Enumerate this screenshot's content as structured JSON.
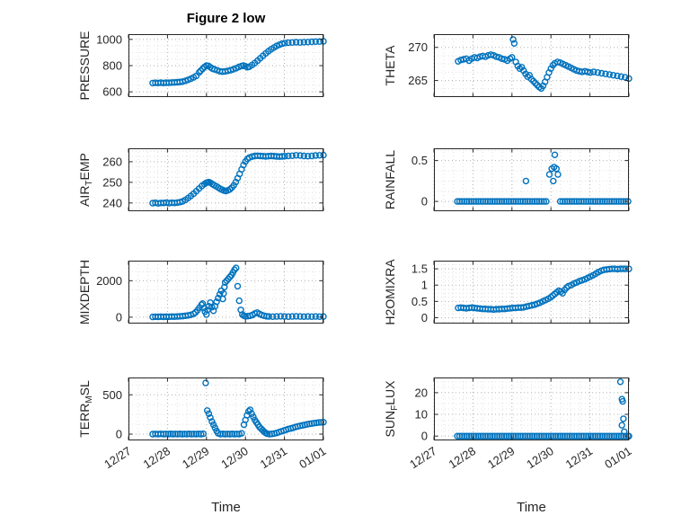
{
  "title": "Figure 2 low",
  "chart_meta": {
    "xlabel": "Time",
    "type": "scatter",
    "marker_style": "open-circle",
    "marker_color": "#0072BD",
    "axis_color": "#262626",
    "grid_major_color": "#b0b0b0",
    "grid_minor_color": "#e0e0e0",
    "grid": "on",
    "xlim": [
      0,
      5
    ],
    "x_minor_step": 0.25,
    "xtick_values": [
      0,
      1,
      2,
      3,
      4,
      5
    ],
    "xtick_labels": [
      "12/27",
      "12/28",
      "12/29",
      "12/30",
      "12/31",
      "01/01"
    ]
  },
  "chart_data": [
    {
      "id": "pressure",
      "ylabel": "PRESSURE",
      "ylabel_parts": [
        {
          "text": "PRESSURE",
          "sub": false
        }
      ],
      "ylim": [
        560,
        1040
      ],
      "ytick_values": [
        600,
        800,
        1000
      ],
      "ytick_labels": [
        "600",
        "800",
        "1000"
      ],
      "x": [
        0.62,
        0.69,
        0.76,
        0.83,
        0.9,
        0.97,
        1.04,
        1.11,
        1.18,
        1.25,
        1.32,
        1.39,
        1.46,
        1.53,
        1.6,
        1.67,
        1.74,
        1.81,
        1.85,
        1.9,
        1.95,
        2.0,
        2.05,
        2.1,
        2.15,
        2.2,
        2.27,
        2.34,
        2.41,
        2.48,
        2.55,
        2.62,
        2.69,
        2.76,
        2.83,
        2.9,
        2.95,
        3.0,
        3.05,
        3.1,
        3.17,
        3.24,
        3.31,
        3.38,
        3.45,
        3.52,
        3.59,
        3.66,
        3.73,
        3.8,
        3.87,
        3.94,
        4.01,
        4.1,
        4.2,
        4.3,
        4.4,
        4.5,
        4.6,
        4.7,
        4.8,
        4.9,
        5.0
      ],
      "y": [
        667,
        669,
        668,
        670,
        668,
        670,
        669,
        671,
        672,
        673,
        675,
        678,
        684,
        692,
        700,
        710,
        722,
        748,
        760,
        775,
        790,
        800,
        798,
        788,
        778,
        772,
        765,
        757,
        754,
        756,
        760,
        765,
        772,
        780,
        790,
        797,
        800,
        795,
        788,
        792,
        805,
        820,
        838,
        856,
        875,
        893,
        910,
        925,
        938,
        950,
        960,
        967,
        972,
        975,
        976,
        978,
        977,
        979,
        980,
        982,
        983,
        984,
        985
      ]
    },
    {
      "id": "theta",
      "ylabel": "THETA",
      "ylabel_parts": [
        {
          "text": "THETA",
          "sub": false
        }
      ],
      "ylim": [
        262.5,
        272
      ],
      "ytick_values": [
        265,
        270
      ],
      "ytick_labels": [
        "265",
        "270"
      ],
      "x": [
        0.62,
        0.69,
        0.76,
        0.83,
        0.9,
        0.97,
        1.04,
        1.11,
        1.18,
        1.25,
        1.32,
        1.39,
        1.46,
        1.53,
        1.6,
        1.67,
        1.74,
        1.81,
        1.88,
        1.95,
        2.0,
        2.03,
        2.06,
        2.1,
        2.15,
        2.2,
        2.25,
        2.3,
        2.35,
        2.4,
        2.45,
        2.5,
        2.55,
        2.6,
        2.65,
        2.7,
        2.75,
        2.8,
        2.85,
        2.9,
        2.95,
        3.0,
        3.05,
        3.1,
        3.17,
        3.24,
        3.31,
        3.38,
        3.45,
        3.52,
        3.59,
        3.66,
        3.73,
        3.8,
        3.87,
        3.94,
        4.01,
        4.1,
        4.2,
        4.3,
        4.4,
        4.5,
        4.6,
        4.7,
        4.8,
        4.9,
        5.0
      ],
      "y": [
        267.9,
        268.1,
        268.2,
        268.3,
        268.0,
        268.3,
        268.5,
        268.4,
        268.6,
        268.7,
        268.6,
        268.8,
        268.9,
        268.8,
        268.6,
        268.5,
        268.3,
        268.2,
        268.0,
        268.3,
        268.5,
        271.2,
        270.6,
        267.8,
        267.2,
        266.8,
        267.0,
        266.5,
        266.0,
        265.6,
        265.8,
        265.2,
        264.9,
        264.6,
        264.3,
        264.0,
        263.8,
        264.2,
        264.8,
        265.5,
        266.2,
        266.8,
        267.3,
        267.6,
        267.8,
        267.7,
        267.5,
        267.3,
        267.1,
        266.9,
        266.7,
        266.5,
        266.4,
        266.3,
        266.4,
        266.3,
        266.2,
        266.3,
        266.2,
        266.1,
        266.0,
        265.9,
        265.8,
        265.7,
        265.6,
        265.5,
        265.3
      ]
    },
    {
      "id": "air_temp",
      "ylabel": "AIR_TEMP",
      "ylabel_parts": [
        {
          "text": "AIR",
          "sub": false
        },
        {
          "text": "T",
          "sub": true
        },
        {
          "text": "EMP",
          "sub": false
        }
      ],
      "ylim": [
        236,
        266.5
      ],
      "ytick_values": [
        240,
        250,
        260
      ],
      "ytick_labels": [
        "240",
        "250",
        "260"
      ],
      "x": [
        0.62,
        0.69,
        0.76,
        0.83,
        0.9,
        0.97,
        1.04,
        1.11,
        1.18,
        1.25,
        1.32,
        1.39,
        1.46,
        1.53,
        1.6,
        1.67,
        1.74,
        1.81,
        1.88,
        1.95,
        2.0,
        2.03,
        2.06,
        2.1,
        2.15,
        2.2,
        2.25,
        2.3,
        2.35,
        2.4,
        2.45,
        2.5,
        2.55,
        2.6,
        2.65,
        2.7,
        2.75,
        2.8,
        2.85,
        2.9,
        2.95,
        3.0,
        3.05,
        3.1,
        3.17,
        3.24,
        3.31,
        3.38,
        3.45,
        3.52,
        3.59,
        3.66,
        3.73,
        3.8,
        3.87,
        3.94,
        4.01,
        4.1,
        4.2,
        4.3,
        4.4,
        4.5,
        4.6,
        4.7,
        4.8,
        4.9,
        5.0
      ],
      "y": [
        239.9,
        240.1,
        239.8,
        240.0,
        240.0,
        240.2,
        239.9,
        240.1,
        240.0,
        240.2,
        240.4,
        240.8,
        241.5,
        242.4,
        243.4,
        244.5,
        245.7,
        247.0,
        248.2,
        249.2,
        249.8,
        250.0,
        250.1,
        249.8,
        249.2,
        248.6,
        248.1,
        247.5,
        246.9,
        246.4,
        246.0,
        245.8,
        246.1,
        246.6,
        247.4,
        248.6,
        250.1,
        252.0,
        254.1,
        256.3,
        258.4,
        260.1,
        261.3,
        262.0,
        262.5,
        262.8,
        262.9,
        262.8,
        262.7,
        262.6,
        262.7,
        262.8,
        262.7,
        262.6,
        262.5,
        262.6,
        262.7,
        262.8,
        262.9,
        263.1,
        263.0,
        262.8,
        262.7,
        262.8,
        263.0,
        263.1,
        263.2
      ]
    },
    {
      "id": "rainfall",
      "ylabel": "RAINFALL",
      "ylabel_parts": [
        {
          "text": "RAINFALL",
          "sub": false
        }
      ],
      "ylim": [
        -0.12,
        0.65
      ],
      "ytick_values": [
        0,
        0.5
      ],
      "ytick_labels": [
        "0",
        "0.5"
      ],
      "x": [
        0.6,
        0.66,
        0.72,
        0.78,
        0.84,
        0.9,
        0.96,
        1.02,
        1.08,
        1.14,
        1.2,
        1.26,
        1.32,
        1.38,
        1.44,
        1.5,
        1.56,
        1.62,
        1.68,
        1.74,
        1.8,
        1.86,
        1.92,
        1.98,
        2.04,
        2.1,
        2.16,
        2.22,
        2.28,
        2.34,
        2.4,
        2.46,
        2.52,
        2.58,
        2.64,
        2.7,
        2.76,
        2.82,
        2.88,
        3.24,
        3.3,
        3.36,
        3.42,
        3.48,
        3.54,
        3.6,
        3.66,
        3.72,
        3.78,
        3.84,
        3.9,
        3.96,
        4.02,
        4.08,
        4.14,
        4.2,
        4.26,
        4.32,
        4.38,
        4.44,
        4.5,
        4.56,
        4.62,
        4.68,
        4.74,
        4.8,
        4.86,
        4.92,
        4.98,
        2.36,
        2.96,
        3.02,
        3.06,
        3.08,
        3.1,
        3.14,
        3.18
      ],
      "y": [
        0,
        0,
        0,
        0,
        0,
        0,
        0,
        0,
        0,
        0,
        0,
        0,
        0,
        0,
        0,
        0,
        0,
        0,
        0,
        0,
        0,
        0,
        0,
        0,
        0,
        0,
        0,
        0,
        0,
        0,
        0,
        0,
        0,
        0,
        0,
        0,
        0,
        0,
        0,
        0,
        0,
        0,
        0,
        0,
        0,
        0,
        0,
        0,
        0,
        0,
        0,
        0,
        0,
        0,
        0,
        0,
        0,
        0,
        0,
        0,
        0,
        0,
        0,
        0,
        0,
        0,
        0,
        0,
        0,
        0.25,
        0.33,
        0.4,
        0.25,
        0.42,
        0.57,
        0.4,
        0.33
      ]
    },
    {
      "id": "mixdepth",
      "ylabel": "MIXDEPTH",
      "ylabel_parts": [
        {
          "text": "MIXDEPTH",
          "sub": false
        }
      ],
      "ylim": [
        -350,
        3100
      ],
      "ytick_values": [
        0,
        2000
      ],
      "ytick_labels": [
        "0",
        "2000"
      ],
      "x": [
        0.62,
        0.69,
        0.76,
        0.83,
        0.9,
        0.97,
        1.04,
        1.11,
        1.18,
        1.25,
        1.32,
        1.39,
        1.46,
        1.53,
        1.6,
        1.67,
        1.72,
        1.77,
        1.82,
        1.87,
        1.9,
        1.93,
        1.96,
        2.0,
        2.03,
        2.06,
        2.1,
        2.14,
        2.18,
        2.22,
        2.26,
        2.3,
        2.34,
        2.38,
        2.42,
        2.44,
        2.46,
        2.48,
        2.52,
        2.56,
        2.6,
        2.64,
        2.68,
        2.72,
        2.76,
        2.8,
        2.84,
        2.88,
        2.92,
        2.96,
        3.0,
        3.06,
        3.12,
        3.18,
        3.24,
        3.3,
        3.36,
        3.42,
        3.48,
        3.54,
        3.6,
        3.7,
        3.8,
        3.9,
        4.0,
        4.1,
        4.2,
        4.3,
        4.4,
        4.5,
        4.6,
        4.7,
        4.8,
        4.9,
        5.0
      ],
      "y": [
        15,
        25,
        20,
        30,
        20,
        30,
        25,
        35,
        30,
        40,
        50,
        60,
        80,
        100,
        130,
        180,
        260,
        380,
        520,
        680,
        750,
        500,
        300,
        150,
        400,
        600,
        800,
        550,
        350,
        600,
        850,
        1050,
        1250,
        1450,
        1000,
        1300,
        1650,
        1900,
        2000,
        2100,
        2200,
        2300,
        2450,
        2600,
        2700,
        1700,
        900,
        400,
        150,
        80,
        50,
        60,
        80,
        120,
        200,
        250,
        180,
        120,
        80,
        50,
        40,
        30,
        40,
        50,
        40,
        30,
        40,
        50,
        40,
        30,
        40,
        30,
        40,
        30,
        40
      ]
    },
    {
      "id": "h2omixra",
      "ylabel": "H2OMIXRA",
      "ylabel_parts": [
        {
          "text": "H2OMIXRA",
          "sub": false
        }
      ],
      "ylim": [
        -0.18,
        1.75
      ],
      "ytick_values": [
        0,
        0.5,
        1,
        1.5
      ],
      "ytick_labels": [
        "0",
        "0.5",
        "1",
        "1.5"
      ],
      "x": [
        0.62,
        0.69,
        0.76,
        0.83,
        0.9,
        0.97,
        1.04,
        1.11,
        1.18,
        1.25,
        1.32,
        1.39,
        1.46,
        1.53,
        1.6,
        1.67,
        1.74,
        1.81,
        1.88,
        1.95,
        2.02,
        2.09,
        2.16,
        2.23,
        2.3,
        2.37,
        2.44,
        2.51,
        2.58,
        2.65,
        2.72,
        2.79,
        2.86,
        2.93,
        3.0,
        3.05,
        3.1,
        3.15,
        3.2,
        3.25,
        3.3,
        3.35,
        3.4,
        3.45,
        3.52,
        3.59,
        3.66,
        3.73,
        3.8,
        3.87,
        3.94,
        4.01,
        4.08,
        4.15,
        4.22,
        4.29,
        4.36,
        4.43,
        4.5,
        4.57,
        4.64,
        4.71,
        4.78,
        4.85,
        4.92,
        5.0
      ],
      "y": [
        0.3,
        0.31,
        0.3,
        0.29,
        0.3,
        0.31,
        0.3,
        0.29,
        0.28,
        0.27,
        0.27,
        0.26,
        0.26,
        0.25,
        0.26,
        0.26,
        0.27,
        0.27,
        0.28,
        0.29,
        0.3,
        0.3,
        0.31,
        0.31,
        0.32,
        0.34,
        0.36,
        0.38,
        0.4,
        0.43,
        0.46,
        0.5,
        0.54,
        0.58,
        0.63,
        0.68,
        0.73,
        0.78,
        0.83,
        0.8,
        0.75,
        0.85,
        0.92,
        0.97,
        1.0,
        1.05,
        1.08,
        1.12,
        1.15,
        1.18,
        1.22,
        1.26,
        1.3,
        1.35,
        1.4,
        1.44,
        1.47,
        1.48,
        1.49,
        1.5,
        1.5,
        1.49,
        1.5,
        1.5,
        1.5,
        1.5
      ]
    },
    {
      "id": "terr_msl",
      "ylabel": "TERR_MSL",
      "ylabel_parts": [
        {
          "text": "TERR",
          "sub": false
        },
        {
          "text": "M",
          "sub": true
        },
        {
          "text": "SL",
          "sub": false
        }
      ],
      "ylim": [
        -80,
        720
      ],
      "ytick_values": [
        0,
        500
      ],
      "ytick_labels": [
        "0",
        "500"
      ],
      "x": [
        0.62,
        0.69,
        0.76,
        0.83,
        0.9,
        0.96,
        1.02,
        1.08,
        1.14,
        1.2,
        1.26,
        1.32,
        1.38,
        1.44,
        1.5,
        1.56,
        1.62,
        1.68,
        1.74,
        1.8,
        1.86,
        1.92,
        1.98,
        2.02,
        2.06,
        2.1,
        2.14,
        2.18,
        2.22,
        2.26,
        2.3,
        2.36,
        2.42,
        2.48,
        2.54,
        2.6,
        2.66,
        2.72,
        2.78,
        2.84,
        2.9,
        2.96,
        3.0,
        3.04,
        3.08,
        3.12,
        3.16,
        3.2,
        3.24,
        3.28,
        3.32,
        3.36,
        3.4,
        3.44,
        3.48,
        3.52,
        3.56,
        3.62,
        3.68,
        3.74,
        3.8,
        3.86,
        3.92,
        3.98,
        4.04,
        4.1,
        4.16,
        4.22,
        4.28,
        4.34,
        4.4,
        4.46,
        4.52,
        4.58,
        4.64,
        4.7,
        4.76,
        4.82,
        4.88,
        4.94,
        5.0
      ],
      "y": [
        0,
        2,
        0,
        3,
        0,
        2,
        0,
        3,
        0,
        2,
        0,
        3,
        0,
        2,
        0,
        3,
        0,
        2,
        0,
        3,
        0,
        5,
        650,
        300,
        260,
        210,
        160,
        120,
        80,
        40,
        10,
        0,
        3,
        0,
        2,
        0,
        3,
        0,
        2,
        0,
        10,
        120,
        180,
        240,
        290,
        310,
        260,
        220,
        180,
        150,
        120,
        90,
        70,
        50,
        30,
        15,
        5,
        0,
        3,
        8,
        15,
        25,
        35,
        45,
        55,
        65,
        72,
        80,
        90,
        98,
        105,
        112,
        118,
        124,
        130,
        135,
        140,
        144,
        147,
        150,
        152
      ]
    },
    {
      "id": "sun_flux",
      "ylabel": "SUN_FLUX",
      "ylabel_parts": [
        {
          "text": "SUN",
          "sub": false
        },
        {
          "text": "F",
          "sub": true
        },
        {
          "text": "LUX",
          "sub": false
        }
      ],
      "ylim": [
        -2,
        27
      ],
      "ytick_values": [
        0,
        10,
        20
      ],
      "ytick_labels": [
        "0",
        "10",
        "20"
      ],
      "x": [
        0.6,
        0.66,
        0.72,
        0.78,
        0.84,
        0.9,
        0.96,
        1.02,
        1.08,
        1.14,
        1.2,
        1.26,
        1.32,
        1.38,
        1.44,
        1.5,
        1.56,
        1.62,
        1.68,
        1.74,
        1.8,
        1.86,
        1.92,
        1.98,
        2.04,
        2.1,
        2.16,
        2.22,
        2.28,
        2.34,
        2.4,
        2.46,
        2.52,
        2.58,
        2.64,
        2.7,
        2.76,
        2.82,
        2.88,
        2.94,
        3.0,
        3.06,
        3.12,
        3.18,
        3.24,
        3.3,
        3.36,
        3.42,
        3.48,
        3.54,
        3.6,
        3.66,
        3.72,
        3.78,
        3.84,
        3.9,
        3.96,
        4.02,
        4.08,
        4.14,
        4.2,
        4.26,
        4.32,
        4.38,
        4.44,
        4.5,
        4.56,
        4.62,
        4.68,
        4.74,
        4.8,
        4.86,
        4.92,
        4.98,
        5.0,
        4.78,
        4.82,
        4.84,
        4.86,
        4.82,
        4.88
      ],
      "y": [
        0,
        0,
        0,
        0,
        0,
        0,
        0,
        0,
        0,
        0,
        0,
        0,
        0,
        0,
        0,
        0,
        0,
        0,
        0,
        0,
        0,
        0,
        0,
        0,
        0,
        0,
        0,
        0,
        0,
        0,
        0,
        0,
        0,
        0,
        0,
        0,
        0,
        0,
        0,
        0,
        0,
        0,
        0,
        0,
        0,
        0,
        0,
        0,
        0,
        0,
        0,
        0,
        0,
        0,
        0,
        0,
        0,
        0,
        0,
        0,
        0,
        0,
        0,
        0,
        0,
        0,
        0,
        0,
        0,
        0,
        0,
        0,
        0,
        0,
        0,
        25,
        17,
        16,
        8,
        5,
        2
      ]
    }
  ]
}
